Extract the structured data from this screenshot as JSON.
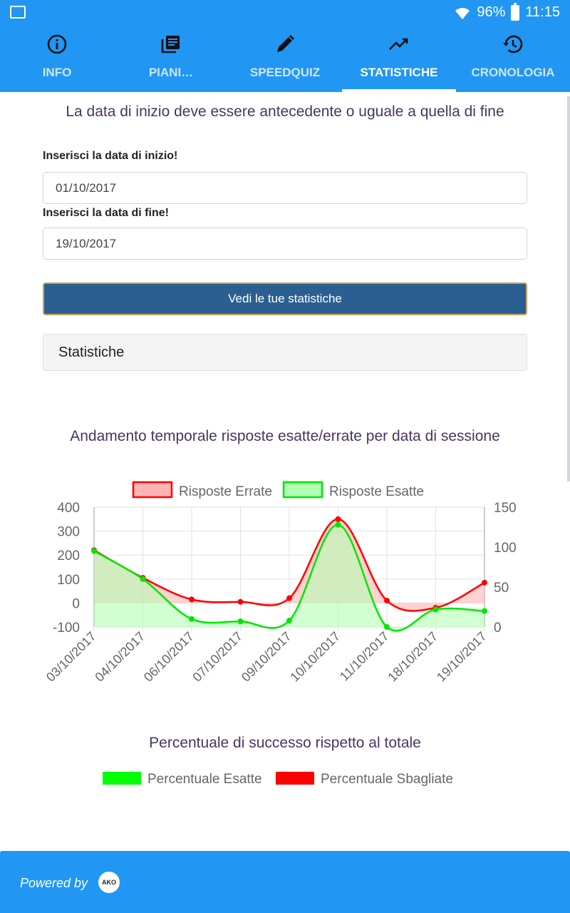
{
  "statusbar": {
    "battery": "96%",
    "time": "11:15"
  },
  "tabs": [
    {
      "label": "INFO",
      "icon": "info-icon"
    },
    {
      "label": "PIANI…",
      "icon": "library-books-icon"
    },
    {
      "label": "SPEEDQUIZ",
      "icon": "pencil-icon"
    },
    {
      "label": "STATISTICHE",
      "icon": "trending-up-icon"
    },
    {
      "label": "CRONOLOGIA",
      "icon": "history-icon"
    }
  ],
  "form": {
    "warning": "La data di inizio deve essere antecedente o uguale a quella di fine",
    "start_label": "Inserisci la data di inizio!",
    "start_value": "01/10/2017",
    "end_label": "Inserisci la data di fine!",
    "end_value": "19/10/2017",
    "submit_label": "Vedi le tue statistiche",
    "panel_title": "Statistiche"
  },
  "chart_data": [
    {
      "type": "line",
      "title": "Andamento temporale risposte esatte/errate per data di sessione",
      "categories": [
        "03/10/2017",
        "04/10/2017",
        "06/10/2017",
        "07/10/2017",
        "09/10/2017",
        "10/10/2017",
        "11/10/2017",
        "18/10/2017",
        "19/10/2017"
      ],
      "series": [
        {
          "name": "Risposte Errate",
          "axis": "left",
          "color": "#ff0000",
          "fill": "#ffb3b3",
          "values": [
            220,
            105,
            15,
            5,
            20,
            350,
            10,
            -20,
            85
          ]
        },
        {
          "name": "Risposte Esatte",
          "axis": "right",
          "color": "#00e600",
          "fill": "#b3ffb3",
          "values": [
            95,
            60,
            10,
            7,
            8,
            128,
            0,
            22,
            20
          ]
        }
      ],
      "y_left": {
        "min": -100,
        "max": 400,
        "ticks": [
          400,
          300,
          200,
          100,
          0,
          -100
        ]
      },
      "y_right": {
        "min": 0,
        "max": 150,
        "ticks": [
          150,
          100,
          50,
          0
        ]
      },
      "grid": true,
      "legend": "top"
    },
    {
      "type": "pie",
      "title": "Percentuale di successo rispetto al totale",
      "series": [
        {
          "name": "Percentuale Esatte",
          "color": "#00ff00"
        },
        {
          "name": "Percentuale Sbagliate",
          "color": "#ff0000"
        }
      ],
      "legend": "top"
    }
  ],
  "footer": {
    "powered": "Powered by",
    "logo": "AKO"
  }
}
